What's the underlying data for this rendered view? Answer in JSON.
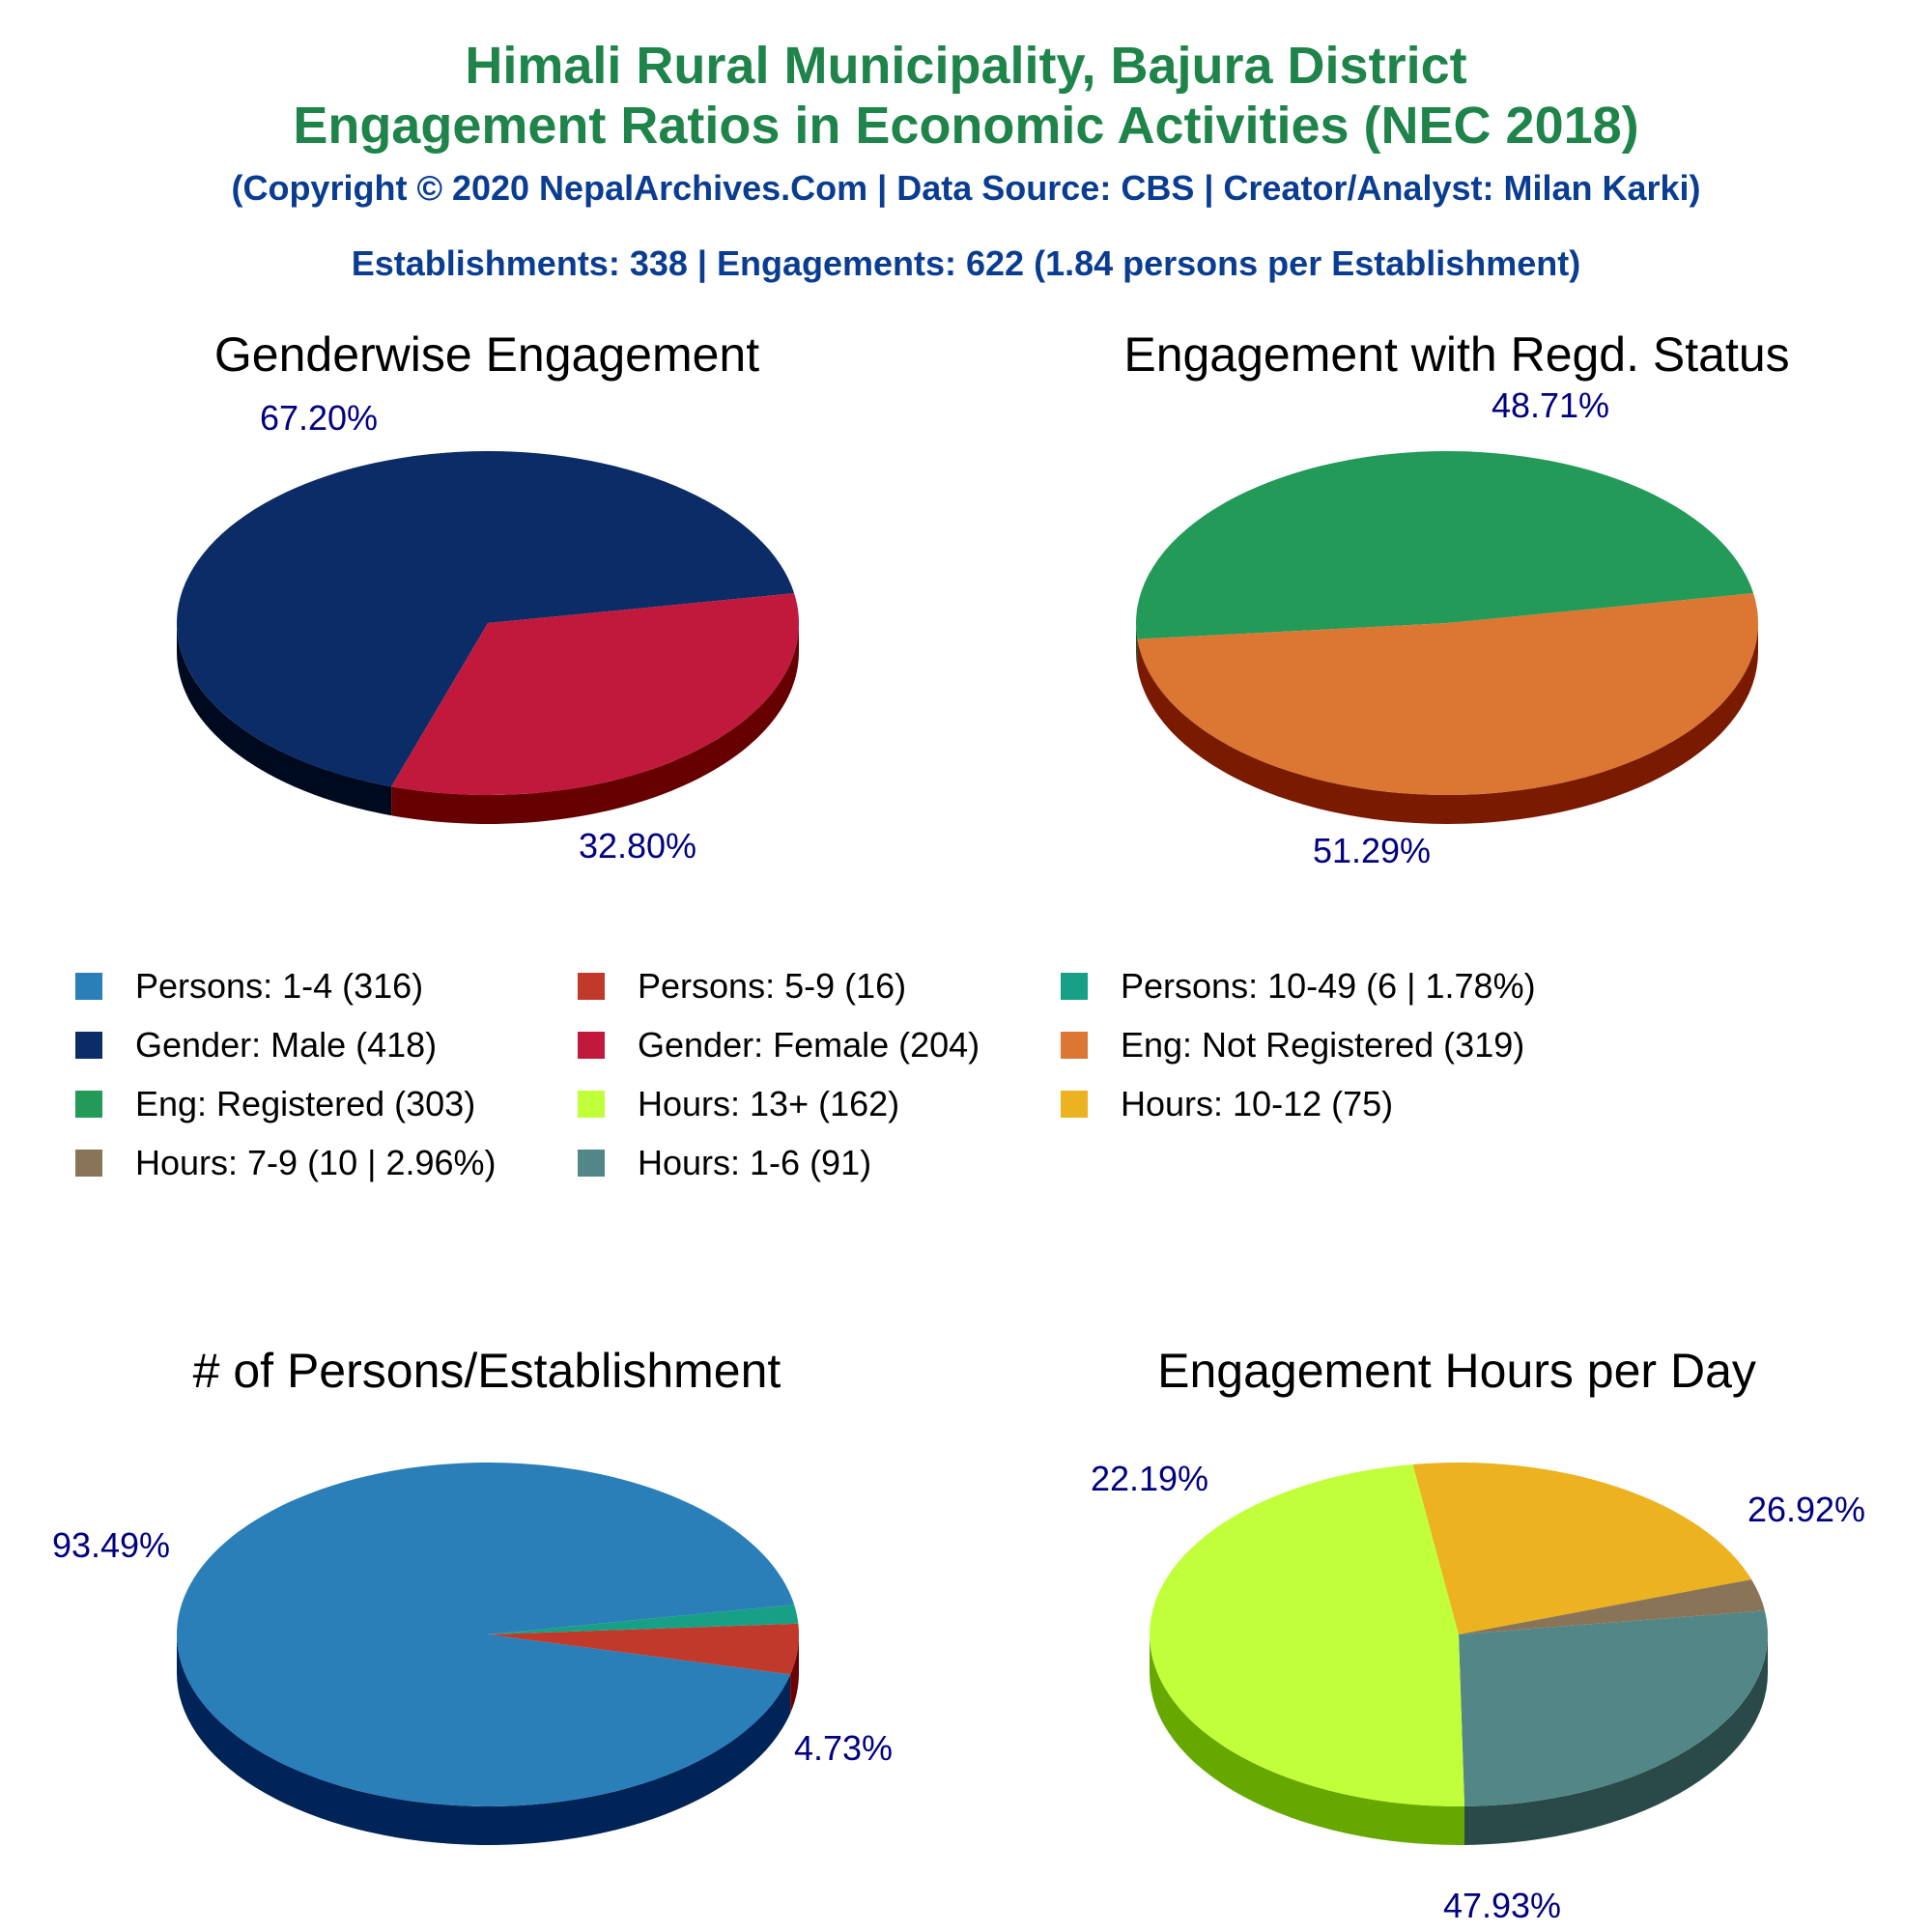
{
  "header": {
    "title_line1": "Himali Rural Municipality, Bajura District",
    "title_line2": "Engagement Ratios in Economic Activities (NEC 2018)",
    "copyright": "(Copyright © 2020 NepalArchives.Com | Data Source: CBS | Creator/Analyst: Milan Karki)",
    "summary": "Establishments: 338 | Engagements: 622 (1.84 persons per Establishment)"
  },
  "legend": [
    {
      "label": "Persons: 1-4 (316)",
      "color": "#2a7fb8"
    },
    {
      "label": "Persons: 5-9 (16)",
      "color": "#c0392b"
    },
    {
      "label": "Persons: 10-49 (6 | 1.78%)",
      "color": "#17a085"
    },
    {
      "label": "Gender: Male (418)",
      "color": "#0b2c66"
    },
    {
      "label": "Gender: Female (204)",
      "color": "#c0193c"
    },
    {
      "label": "Eng: Not Registered (319)",
      "color": "#db7633"
    },
    {
      "label": "Eng: Registered (303)",
      "color": "#239a58"
    },
    {
      "label": "Hours: 13+ (162)",
      "color": "#c2ff3b"
    },
    {
      "label": "Hours: 10-12 (75)",
      "color": "#ecb21f"
    },
    {
      "label": "Hours: 7-9 (10 | 2.96%)",
      "color": "#8a7458"
    },
    {
      "label": "Hours: 1-6 (91)",
      "color": "#538787"
    }
  ],
  "chart_data": [
    {
      "type": "pie",
      "title": "Genderwise Engagement",
      "slices": [
        {
          "name": "Gender: Male",
          "value": 418,
          "label": "67.20%",
          "color": "#0b2c66",
          "side": "#000a1e"
        },
        {
          "name": "Gender: Female",
          "value": 204,
          "label": "32.80%",
          "color": "#c0193c",
          "side": "#660000"
        }
      ]
    },
    {
      "type": "pie",
      "title": "Engagement with Regd. Status",
      "slices": [
        {
          "name": "Eng: Registered",
          "value": 303,
          "label": "48.71%",
          "color": "#239a58",
          "side": "#0f5a2e"
        },
        {
          "name": "Eng: Not Registered",
          "value": 319,
          "label": "51.29%",
          "color": "#db7633",
          "side": "#7a1a00"
        }
      ]
    },
    {
      "type": "pie",
      "title": "# of Persons/Establishment",
      "slices": [
        {
          "name": "Persons: 1-4",
          "value": 316,
          "label": "93.49%",
          "color": "#2a7fb8",
          "side": "#002458"
        },
        {
          "name": "Persons: 5-9",
          "value": 16,
          "label": "4.73%",
          "color": "#c0392b",
          "side": "#6a0000"
        },
        {
          "name": "Persons: 10-49",
          "value": 6,
          "label": "",
          "color": "#17a085",
          "side": "#004a3a"
        }
      ]
    },
    {
      "type": "pie",
      "title": "Engagement Hours per Day",
      "slices": [
        {
          "name": "Hours: 1-6",
          "value": 91,
          "label": "26.92%",
          "color": "#538787",
          "side": "#2a4a4a"
        },
        {
          "name": "Hours: 13+",
          "value": 162,
          "label": "47.93%",
          "color": "#c2ff3b",
          "side": "#66a800"
        },
        {
          "name": "Hours: 10-12",
          "value": 75,
          "label": "22.19%",
          "color": "#ecb21f",
          "side": "#8a6400"
        },
        {
          "name": "Hours: 7-9",
          "value": 10,
          "label": "",
          "color": "#8a7458",
          "side": "#4a3a28"
        }
      ]
    }
  ]
}
